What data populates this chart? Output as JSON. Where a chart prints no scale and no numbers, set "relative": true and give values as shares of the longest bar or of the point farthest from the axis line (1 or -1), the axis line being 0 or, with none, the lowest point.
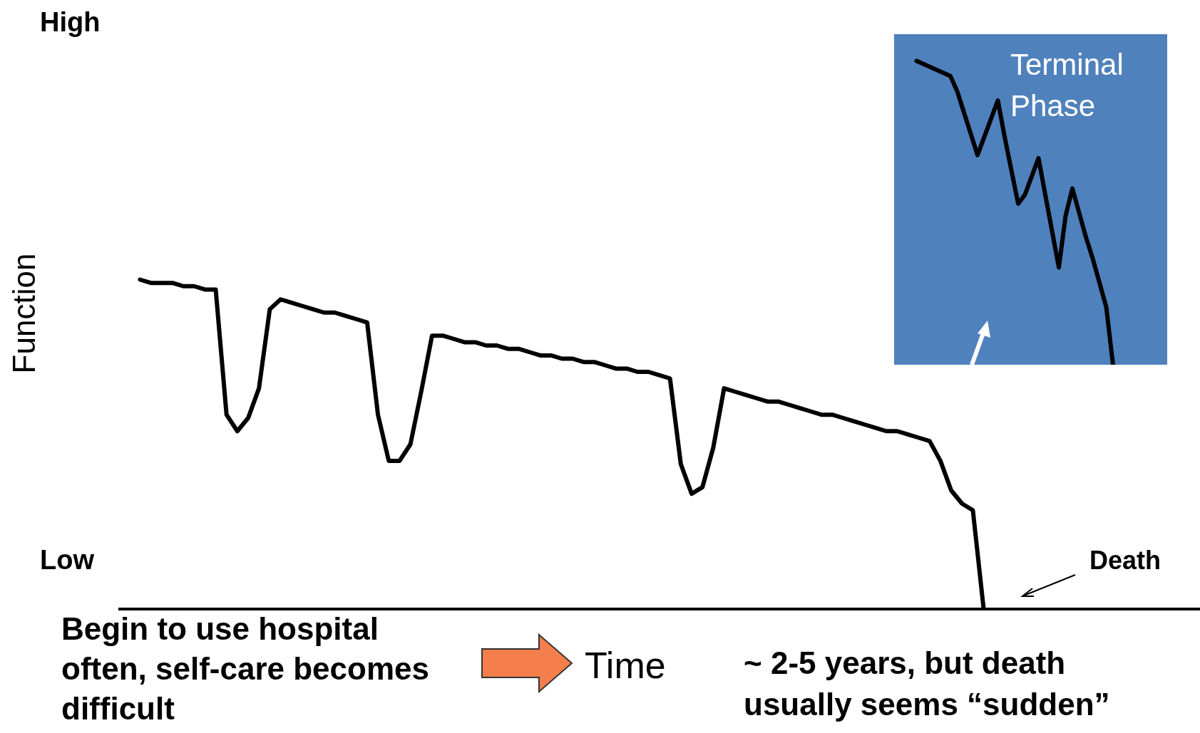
{
  "chart_data": [
    {
      "type": "line",
      "ylabel": "Function",
      "xlabel": "Time",
      "relative": true,
      "categories": [
        null,
        null,
        null,
        null,
        null,
        null,
        null,
        null,
        null,
        null,
        null,
        null,
        null,
        null,
        null,
        null,
        null,
        null,
        null,
        null,
        null,
        null,
        null,
        null,
        null,
        null,
        null,
        null,
        null,
        null,
        null,
        null,
        null,
        null,
        null,
        null,
        null,
        null,
        null,
        null,
        null,
        null,
        null,
        null,
        null,
        null,
        null,
        null,
        null,
        null,
        null,
        null,
        null,
        null,
        null,
        null,
        null,
        null,
        null,
        null,
        null,
        null,
        null,
        null,
        null,
        null,
        null,
        null,
        null,
        null,
        null,
        null,
        null,
        null,
        null,
        null,
        null,
        null,
        null,
        null,
        null,
        null,
        null,
        null,
        null,
        null,
        null,
        null,
        null,
        null,
        null,
        null,
        null,
        null,
        null,
        null,
        null,
        null,
        null,
        null,
        null
      ],
      "series": [
        {
          "color": "#000000",
          "values": [
            null,
            null,
            1.0,
            0.99,
            0.99,
            0.99,
            0.98,
            0.98,
            0.97,
            0.97,
            0.59,
            0.54,
            0.58,
            0.67,
            0.91,
            0.94,
            0.93,
            0.92,
            0.91,
            0.9,
            0.9,
            0.89,
            0.88,
            0.87,
            0.59,
            0.45,
            0.45,
            0.5,
            0.66,
            0.83,
            0.83,
            0.82,
            0.81,
            0.81,
            0.8,
            0.8,
            0.79,
            0.79,
            0.78,
            0.77,
            0.77,
            0.76,
            0.76,
            0.75,
            0.75,
            0.74,
            0.73,
            0.73,
            0.72,
            0.72,
            0.71,
            0.7,
            0.44,
            0.35,
            0.37,
            0.49,
            0.67,
            0.66,
            0.65,
            0.64,
            0.63,
            0.63,
            0.62,
            0.61,
            0.6,
            0.59,
            0.59,
            0.58,
            0.57,
            0.56,
            0.55,
            0.54,
            0.54,
            0.53,
            0.52,
            0.51,
            0.45,
            0.36,
            0.32,
            0.3,
            0,
            null,
            null,
            null,
            null,
            null,
            null,
            null,
            null,
            null,
            null,
            null,
            null,
            null,
            null,
            null,
            null,
            null,
            null,
            null,
            null
          ]
        }
      ],
      "annotations": [
        "High",
        "Low",
        "Begin to use hospital often, self-care becomes difficult",
        "~ 2-5 years, but death usually seems “sudden”",
        "Death"
      ]
    },
    {
      "type": "line",
      "title": "Terminal Phase",
      "relative": true,
      "categories": [
        null,
        null,
        null,
        null,
        null,
        null,
        null,
        null,
        null,
        null,
        null,
        null,
        null,
        null,
        null,
        null,
        null,
        null,
        null,
        null,
        null,
        null,
        null,
        null,
        null,
        null,
        null,
        null,
        null,
        null,
        null,
        null,
        null,
        null,
        null,
        null,
        null,
        null,
        null,
        null,
        null
      ],
      "series": [
        {
          "color": "#000000",
          "values": [
            null,
            null,
            null,
            1.0,
            0.99,
            0.98,
            0.97,
            0.96,
            0.95,
            0.9,
            0.83,
            0.76,
            0.69,
            0.75,
            0.81,
            0.87,
            0.75,
            0.64,
            0.53,
            0.56,
            0.62,
            0.68,
            0.56,
            0.44,
            0.32,
            0.49,
            0.58,
            0.5,
            0.42,
            0.35,
            0.27,
            0.19,
            0,
            null,
            null,
            null,
            null,
            null,
            null,
            null,
            null
          ]
        }
      ]
    }
  ]
}
